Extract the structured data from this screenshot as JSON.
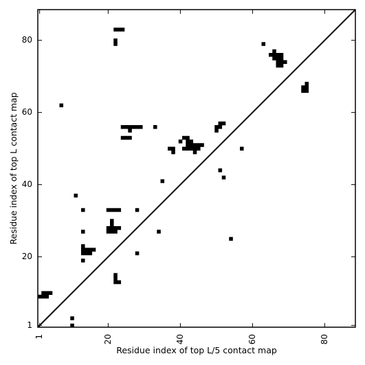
{
  "chart_data": {
    "type": "heatmap",
    "title": "",
    "xlabel": "Residue index of top L/5 contact map",
    "ylabel": "Residue index of top L contact map",
    "xlim": [
      0.5,
      88.5
    ],
    "ylim": [
      0.5,
      88.5
    ],
    "x_ticks": [
      1,
      20,
      40,
      60,
      80
    ],
    "y_ticks": [
      1,
      20,
      40,
      60,
      80
    ],
    "x_tick_labels": [
      "1",
      "20",
      "40",
      "60",
      "80"
    ],
    "y_tick_labels": [
      "1",
      "20",
      "40",
      "60",
      "80"
    ],
    "x_tick_rotation": -90,
    "diagonal": true,
    "grid": false,
    "colors": {
      "cell": "#000000",
      "axis": "#000000",
      "background": "#ffffff"
    },
    "points": [
      [
        1,
        9
      ],
      [
        2,
        9
      ],
      [
        3,
        9
      ],
      [
        2,
        10
      ],
      [
        3,
        10
      ],
      [
        4,
        10
      ],
      [
        10,
        1
      ],
      [
        10,
        3
      ],
      [
        7,
        62
      ],
      [
        11,
        37
      ],
      [
        13,
        19
      ],
      [
        13,
        21
      ],
      [
        14,
        21
      ],
      [
        15,
        21
      ],
      [
        13,
        22
      ],
      [
        14,
        22
      ],
      [
        15,
        22
      ],
      [
        16,
        22
      ],
      [
        13,
        23
      ],
      [
        13,
        27
      ],
      [
        13,
        33
      ],
      [
        20,
        27
      ],
      [
        21,
        27
      ],
      [
        22,
        27
      ],
      [
        20,
        28
      ],
      [
        21,
        28
      ],
      [
        22,
        28
      ],
      [
        23,
        28
      ],
      [
        21,
        29
      ],
      [
        21,
        30
      ],
      [
        20,
        33
      ],
      [
        21,
        33
      ],
      [
        22,
        33
      ],
      [
        23,
        33
      ],
      [
        22,
        13
      ],
      [
        23,
        13
      ],
      [
        22,
        14
      ],
      [
        22,
        15
      ],
      [
        22,
        79
      ],
      [
        22,
        80
      ],
      [
        22,
        83
      ],
      [
        23,
        83
      ],
      [
        24,
        83
      ],
      [
        24,
        53
      ],
      [
        25,
        53
      ],
      [
        26,
        53
      ],
      [
        24,
        56
      ],
      [
        25,
        56
      ],
      [
        26,
        56
      ],
      [
        27,
        56
      ],
      [
        28,
        56
      ],
      [
        29,
        56
      ],
      [
        26,
        55
      ],
      [
        28,
        21
      ],
      [
        28,
        33
      ],
      [
        33,
        56
      ],
      [
        34,
        27
      ],
      [
        35,
        41
      ],
      [
        37,
        50
      ],
      [
        38,
        50
      ],
      [
        38,
        49
      ],
      [
        40,
        52
      ],
      [
        41,
        53
      ],
      [
        42,
        53
      ],
      [
        41,
        50
      ],
      [
        42,
        50
      ],
      [
        43,
        50
      ],
      [
        44,
        50
      ],
      [
        45,
        50
      ],
      [
        42,
        51
      ],
      [
        43,
        51
      ],
      [
        44,
        51
      ],
      [
        45,
        51
      ],
      [
        46,
        51
      ],
      [
        42,
        52
      ],
      [
        43,
        52
      ],
      [
        44,
        49
      ],
      [
        50,
        55
      ],
      [
        50,
        56
      ],
      [
        51,
        56
      ],
      [
        51,
        57
      ],
      [
        52,
        57
      ],
      [
        51,
        44
      ],
      [
        52,
        42
      ],
      [
        54,
        25
      ],
      [
        57,
        50
      ],
      [
        63,
        79
      ],
      [
        65,
        76
      ],
      [
        66,
        76
      ],
      [
        67,
        76
      ],
      [
        68,
        76
      ],
      [
        66,
        77
      ],
      [
        66,
        75
      ],
      [
        67,
        75
      ],
      [
        68,
        75
      ],
      [
        67,
        74
      ],
      [
        68,
        74
      ],
      [
        69,
        74
      ],
      [
        67,
        73
      ],
      [
        68,
        73
      ],
      [
        74,
        66
      ],
      [
        75,
        66
      ],
      [
        74,
        67
      ],
      [
        75,
        67
      ],
      [
        75,
        68
      ]
    ]
  }
}
